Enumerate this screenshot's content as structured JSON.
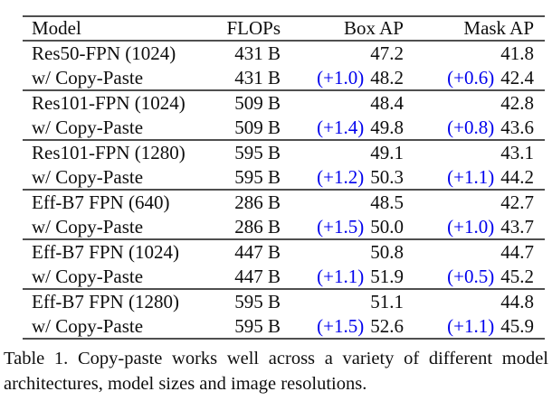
{
  "table": {
    "columns": [
      "Model",
      "FLOPs",
      "Box AP",
      "Mask AP"
    ],
    "delta_color": "#0000ee",
    "text_color": "#0e0e0e",
    "rule_color": "#4f4f4f",
    "rows": [
      {
        "model": "Res50-FPN (1024)",
        "flops": "431 B",
        "box_delta": "",
        "box": "47.2",
        "mask_delta": "",
        "mask": "41.8"
      },
      {
        "model": "w/ Copy-Paste",
        "flops": "431 B",
        "box_delta": "(+1.0)",
        "box": "48.2",
        "mask_delta": "(+0.6)",
        "mask": "42.4"
      },
      {
        "model": "Res101-FPN (1024)",
        "flops": "509 B",
        "box_delta": "",
        "box": "48.4",
        "mask_delta": "",
        "mask": "42.8"
      },
      {
        "model": "w/ Copy-Paste",
        "flops": "509 B",
        "box_delta": "(+1.4)",
        "box": "49.8",
        "mask_delta": "(+0.8)",
        "mask": "43.6"
      },
      {
        "model": "Res101-FPN (1280)",
        "flops": "595 B",
        "box_delta": "",
        "box": "49.1",
        "mask_delta": "",
        "mask": "43.1"
      },
      {
        "model": "w/ Copy-Paste",
        "flops": "595 B",
        "box_delta": "(+1.2)",
        "box": "50.3",
        "mask_delta": "(+1.1)",
        "mask": "44.2"
      },
      {
        "model": "Eff-B7 FPN (640)",
        "flops": "286 B",
        "box_delta": "",
        "box": "48.5",
        "mask_delta": "",
        "mask": "42.7"
      },
      {
        "model": "w/ Copy-Paste",
        "flops": "286 B",
        "box_delta": "(+1.5)",
        "box": "50.0",
        "mask_delta": "(+1.0)",
        "mask": "43.7"
      },
      {
        "model": "Eff-B7 FPN (1024)",
        "flops": "447 B",
        "box_delta": "",
        "box": "50.8",
        "mask_delta": "",
        "mask": "44.7"
      },
      {
        "model": "w/ Copy-Paste",
        "flops": "447 B",
        "box_delta": "(+1.1)",
        "box": "51.9",
        "mask_delta": "(+0.5)",
        "mask": "45.2"
      },
      {
        "model": "Eff-B7 FPN (1280)",
        "flops": "595 B",
        "box_delta": "",
        "box": "51.1",
        "mask_delta": "",
        "mask": "44.8"
      },
      {
        "model": "w/ Copy-Paste",
        "flops": "595 B",
        "box_delta": "(+1.5)",
        "box": "52.6",
        "mask_delta": "(+1.1)",
        "mask": "45.9"
      }
    ]
  },
  "caption": {
    "full_text": "Table 1. Copy-paste works well across a variety of different model architectures, model sizes and image resolutions.",
    "lines": [
      "Table 1. Copy-paste works well across a variety of different model",
      "architectures, model sizes and image resolutions."
    ]
  }
}
